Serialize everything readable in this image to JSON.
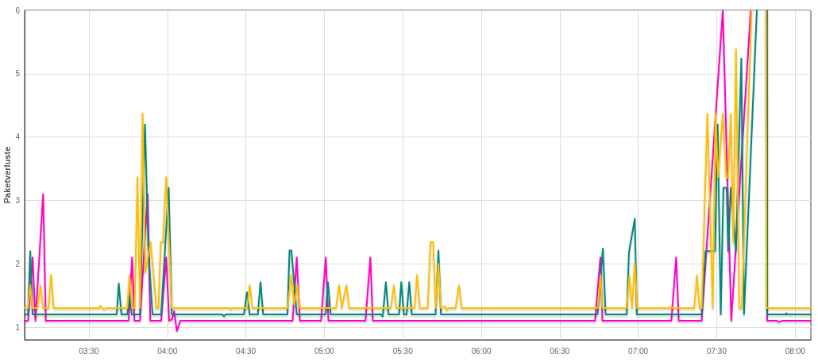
{
  "chart_data": {
    "type": "line",
    "ylabel": "Paketverluste",
    "grid": true,
    "marker": "none",
    "xlim": [
      3.09,
      8.1
    ],
    "ylim": [
      0.8,
      6
    ],
    "xticks": [
      {
        "value": 3.5,
        "label": "03:30"
      },
      {
        "value": 4,
        "label": "04:00"
      },
      {
        "value": 4.5,
        "label": "04:30"
      },
      {
        "value": 5,
        "label": "05:00"
      },
      {
        "value": 5.5,
        "label": "05:30"
      },
      {
        "value": 6,
        "label": "06:00"
      },
      {
        "value": 6.5,
        "label": "06:30"
      },
      {
        "value": 7,
        "label": "07:00"
      },
      {
        "value": 7.5,
        "label": "07:30"
      },
      {
        "value": 8,
        "label": "08:00"
      }
    ],
    "yticks": [
      1,
      2,
      3,
      4,
      5,
      6
    ],
    "series": [
      {
        "color": "#ff00c8",
        "x": [
          3.09,
          3.112,
          3.141,
          3.159,
          3.208,
          3.225,
          3.753,
          3.775,
          3.79,
          3.825,
          3.874,
          3.891,
          3.96,
          3.992,
          4.011,
          4.028,
          4.043,
          4.06,
          4.082,
          4.798,
          4.824,
          4.844,
          4.979,
          5.009,
          5.026,
          5.262,
          5.293,
          5.309,
          6.725,
          6.759,
          6.772,
          7.211,
          7.242,
          7.258,
          7.404,
          7.539,
          7.593,
          7.717,
          7.72,
          7.82,
          7.822,
          7.885,
          7.893,
          7.92,
          8.1
        ],
        "values": [
          1.1,
          1.1,
          2.1,
          1.1,
          3.1,
          1.1,
          1.1,
          2.1,
          1.1,
          1.1,
          3.1,
          1.1,
          1.1,
          2.1,
          1.1,
          1.12,
          1.25,
          0.94,
          1.1,
          1.1,
          2.1,
          1.1,
          1.1,
          2.1,
          1.1,
          1.1,
          2.1,
          1.1,
          1.1,
          2.1,
          1.1,
          1.1,
          2.1,
          1.1,
          1.1,
          6,
          1.1,
          6,
          null,
          6,
          1.1,
          1.1,
          1.08,
          1.1,
          1.1
        ]
      },
      {
        "color": "#00897b",
        "x": [
          3.09,
          3.112,
          3.126,
          3.141,
          3.572,
          3.677,
          3.69,
          3.707,
          3.744,
          3.761,
          3.773,
          3.825,
          3.857,
          3.879,
          3.905,
          3.96,
          4.008,
          4.028,
          4.35,
          4.36,
          4.37,
          4.487,
          4.507,
          4.524,
          4.576,
          4.593,
          4.61,
          4.765,
          4.778,
          4.79,
          4.824,
          5.009,
          5.023,
          5.04,
          5.35,
          5.355,
          5.372,
          5.392,
          5.409,
          5.476,
          5.49,
          5.507,
          5.524,
          5.541,
          5.557,
          5.709,
          5.727,
          5.743,
          6.741,
          6.775,
          6.792,
          6.927,
          6.941,
          6.978,
          6.991,
          7.404,
          7.429,
          7.489,
          7.506,
          7.526,
          7.543,
          7.564,
          7.573,
          7.59,
          7.623,
          7.657,
          7.674,
          7.756,
          7.76,
          7.82,
          7.822,
          7.94,
          7.944,
          7.95,
          8.1
        ],
        "values": [
          1.2,
          1.2,
          2.2,
          1.2,
          1.2,
          1.2,
          1.69,
          1.2,
          1.2,
          1.49,
          1.2,
          1.2,
          4.2,
          2.2,
          1.2,
          1.2,
          3.2,
          1.2,
          1.2,
          1.17,
          1.2,
          1.2,
          1.55,
          1.2,
          1.2,
          1.71,
          1.2,
          1.2,
          2.21,
          2.21,
          1.2,
          1.2,
          1.71,
          1.2,
          1.2,
          1.21,
          1.17,
          1.71,
          1.2,
          1.2,
          1.71,
          1.2,
          1.2,
          1.71,
          1.2,
          1.2,
          2.21,
          1.2,
          1.2,
          2.24,
          1.2,
          1.2,
          2.18,
          2.71,
          1.2,
          1.2,
          2.2,
          2.2,
          4.2,
          1.2,
          3.2,
          3.2,
          2.2,
          3.2,
          2.2,
          5.24,
          1.2,
          6,
          null,
          6,
          1.2,
          1.2,
          1.22,
          1.2,
          1.2
        ]
      },
      {
        "color": "#ffbf00",
        "x": [
          3.09,
          3.112,
          3.126,
          3.141,
          3.171,
          3.191,
          3.208,
          3.242,
          3.259,
          3.275,
          3.565,
          3.572,
          3.593,
          3.61,
          3.744,
          3.758,
          3.775,
          3.791,
          3.809,
          3.825,
          3.842,
          3.859,
          3.893,
          3.93,
          3.943,
          3.958,
          3.972,
          3.992,
          4.028,
          4.395,
          4.402,
          4.41,
          4.507,
          4.525,
          4.542,
          4.765,
          4.79,
          4.808,
          4.827,
          4.844,
          5.074,
          5.094,
          5.111,
          5.141,
          5.158,
          5.423,
          5.443,
          5.46,
          5.575,
          5.591,
          5.608,
          5.659,
          5.676,
          5.693,
          5.709,
          5.727,
          5.743,
          5.77,
          5.78,
          5.79,
          5.836,
          5.858,
          5.875,
          6.741,
          6.76,
          6.772,
          6.927,
          6.944,
          6.961,
          6.978,
          6.994,
          7.2,
          7.206,
          7.22,
          7.357,
          7.374,
          7.391,
          7.404,
          7.441,
          7.475,
          7.492,
          7.509,
          7.539,
          7.561,
          7.573,
          7.59,
          7.606,
          7.623,
          7.644,
          7.66,
          7.722,
          7.725,
          7.814,
          7.817,
          8.1
        ],
        "values": [
          1.3,
          1.3,
          1.66,
          1.3,
          1.3,
          1.66,
          1.3,
          1.3,
          1.83,
          1.3,
          1.3,
          1.34,
          1.28,
          1.3,
          1.3,
          1.82,
          1.3,
          1.3,
          3.37,
          1.3,
          4.37,
          1.86,
          2.34,
          1.3,
          1.3,
          2.34,
          2.34,
          3.37,
          1.3,
          1.3,
          1.28,
          1.3,
          1.3,
          1.66,
          1.3,
          1.3,
          1.82,
          1.35,
          1.66,
          1.3,
          1.3,
          1.66,
          1.3,
          1.66,
          1.3,
          1.3,
          1.66,
          1.3,
          1.3,
          1.82,
          1.3,
          1.3,
          2.34,
          2.34,
          1.3,
          2.0,
          1.3,
          1.33,
          1.27,
          1.3,
          1.3,
          1.66,
          1.3,
          1.3,
          1.82,
          1.3,
          1.3,
          1.82,
          1.3,
          2.01,
          1.3,
          1.3,
          1.33,
          1.3,
          1.3,
          1.82,
          1.3,
          1.3,
          4.37,
          1.3,
          4.37,
          3.36,
          4.37,
          3.36,
          3.36,
          4.37,
          2.34,
          5.39,
          1.3,
          1.3,
          6,
          null,
          6,
          1.3,
          1.3
        ]
      }
    ]
  }
}
